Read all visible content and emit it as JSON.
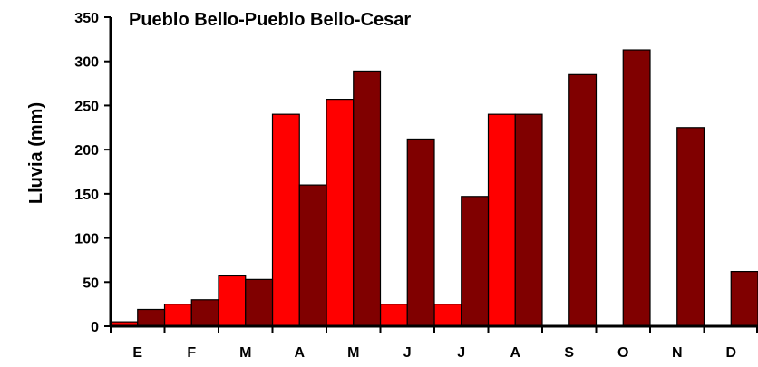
{
  "chart_data": {
    "type": "bar",
    "title": "Pueblo Bello-Pueblo Bello-Cesar",
    "xlabel": "",
    "ylabel": "Lluvia (mm)",
    "categories": [
      "E",
      "F",
      "M",
      "A",
      "M",
      "J",
      "J",
      "A",
      "S",
      "O",
      "N",
      "D"
    ],
    "ylim": [
      0,
      350
    ],
    "yticks": [
      0,
      50,
      100,
      150,
      200,
      250,
      300,
      350
    ],
    "grid": false,
    "legend": "none",
    "series": [
      {
        "color": "#ff0000",
        "values": [
          5,
          25,
          57,
          240,
          257,
          25,
          25,
          240,
          0,
          0,
          0,
          0
        ]
      },
      {
        "color": "#800000",
        "values": [
          19,
          30,
          53,
          160,
          289,
          212,
          147,
          240,
          285,
          313,
          225,
          62
        ]
      }
    ]
  }
}
